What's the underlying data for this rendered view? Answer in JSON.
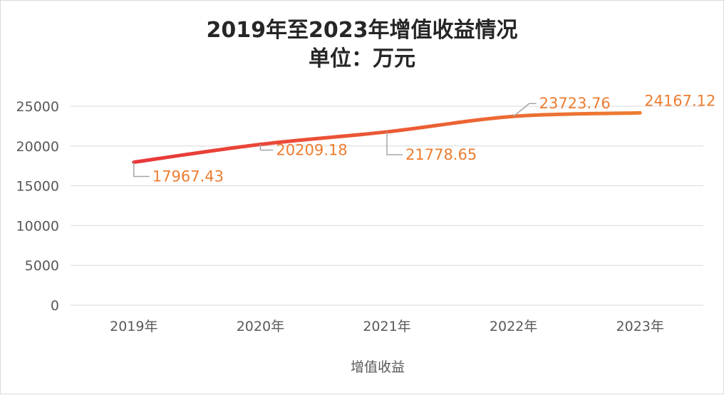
{
  "chart_data": {
    "type": "line",
    "title_line1": "2019年至2023年增值收益情况",
    "title_line2": "单位：万元",
    "categories": [
      "2019年",
      "2020年",
      "2021年",
      "2022年",
      "2023年"
    ],
    "series": [
      {
        "name": "增值收益",
        "values": [
          17967.43,
          20209.18,
          21778.65,
          23723.76,
          24167.12
        ]
      }
    ],
    "data_labels": [
      "17967.43",
      "20209.18",
      "21778.65",
      "23723.76",
      "24167.12"
    ],
    "y_ticks": [
      "0",
      "5000",
      "10000",
      "15000",
      "20000",
      "25000"
    ],
    "ylim": [
      0,
      25000
    ],
    "grid": true,
    "legend_position": "bottom",
    "colors": {
      "line_start": "#e8363a",
      "line_end": "#ed7d31",
      "label": "#ed7d31",
      "grid": "#d9d9d9"
    }
  }
}
